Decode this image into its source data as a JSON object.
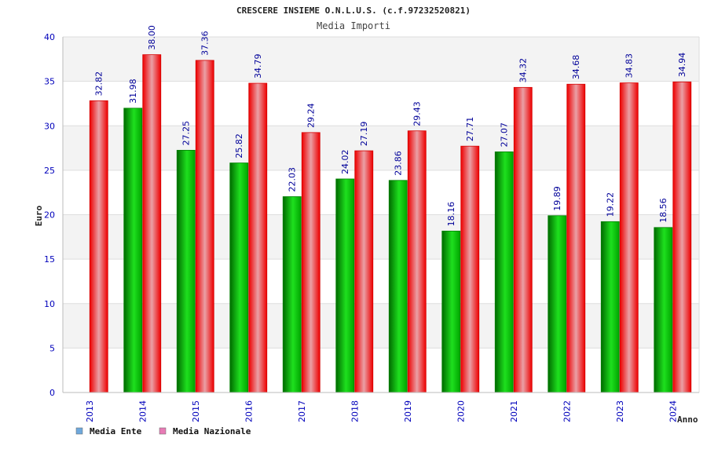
{
  "chart_data": {
    "type": "bar",
    "title": "CRESCERE INSIEME O.N.L.U.S. (c.f.97232520821)",
    "subtitle": "Media Importi",
    "xlabel": "Anno",
    "ylabel": "Euro",
    "ylim": [
      0,
      40
    ],
    "yticks": [
      "0",
      "5",
      "10",
      "15",
      "20",
      "25",
      "30",
      "35",
      "40"
    ],
    "grid": true,
    "legend_position": "bottom-left",
    "categories": [
      "2013",
      "2014",
      "2015",
      "2016",
      "2017",
      "2018",
      "2019",
      "2020",
      "2021",
      "2022",
      "2023",
      "2024"
    ],
    "series": [
      {
        "name": "Media Ente",
        "color": "#00b000",
        "legend_color": "#6fa8dc",
        "values": [
          null,
          31.98,
          27.25,
          25.82,
          22.03,
          24.02,
          23.86,
          18.16,
          27.07,
          19.89,
          19.22,
          18.56
        ],
        "labels": [
          "",
          "31.98",
          "27.25",
          "25.82",
          "22.03",
          "24.02",
          "23.86",
          "18.16",
          "27.07",
          "19.89",
          "19.22",
          "18.56"
        ]
      },
      {
        "name": "Media Nazionale",
        "color": "#ee1111",
        "legend_color": "#e77bb5",
        "values": [
          32.82,
          38.0,
          37.36,
          34.79,
          29.24,
          27.19,
          29.43,
          27.71,
          34.32,
          34.68,
          34.83,
          34.94
        ],
        "labels": [
          "32.82",
          "38.00",
          "37.36",
          "34.79",
          "29.24",
          "27.19",
          "29.43",
          "27.71",
          "34.32",
          "34.68",
          "34.83",
          "34.94"
        ]
      }
    ]
  }
}
